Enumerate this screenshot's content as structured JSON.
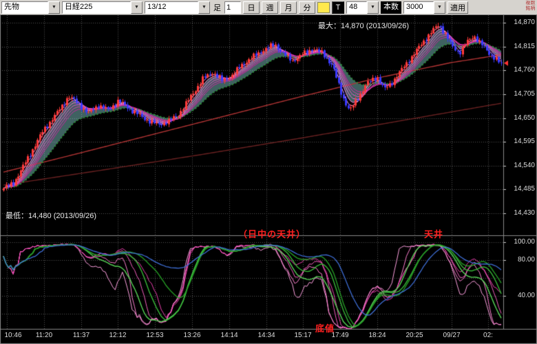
{
  "toolbar": {
    "instrument": "先物",
    "symbol": "日経225",
    "contract": "13/12",
    "bar_label": "足",
    "interval_value": "1",
    "period_buttons": [
      "日",
      "週",
      "月",
      "分"
    ],
    "t_button": "T",
    "bars_count": "48",
    "bars_label": "本数",
    "range_value": "3000",
    "apply_button": "適用",
    "side_tab": "複数銘柄"
  },
  "icons": {
    "chevron_down": "▼"
  },
  "main_chart": {
    "y_axis_labels": [
      "14,870",
      "14,815",
      "14,760",
      "14,705",
      "14,650",
      "14,595",
      "14,540",
      "14,485",
      "14,430"
    ],
    "max_annotation": "最大：14,870 (2013/09/26)",
    "min_annotation": "最低：14,480 (2013/09/26)"
  },
  "indicator_panel": {
    "y_axis_labels": [
      "100.00",
      "80.00",
      "40.00"
    ],
    "y_label_values": [
      100,
      80,
      40
    ],
    "annotations": {
      "intraday_top": "（日中の天井）",
      "top": "天井",
      "bottom": "底値"
    }
  },
  "x_axis_labels": [
    "10:46",
    "11:20",
    "11:37",
    "12:12",
    "12:53",
    "13:26",
    "14:14",
    "14:34",
    "15:17",
    "17:49",
    "18:24",
    "20:25",
    "09/27",
    "02:"
  ],
  "colors": {
    "background": "#000000",
    "grid": "#565656",
    "candle_up": "#ff3a3a",
    "candle_down": "#3a3aff",
    "cyan_fill": "rgba(150,230,230,0.42)",
    "green_ma": "#2d9338",
    "ma_long1": "#b23434",
    "ma_long2": "#6b2222",
    "ribbon": [
      "#ffa8ec",
      "#ff8ae4",
      "#fb6cd8",
      "#f050c8",
      "#e238b6",
      "#d224a4"
    ],
    "stoch_k": [
      "#ffa0e0",
      "#ff7fd0",
      "#f75fc0",
      "#ee40b0"
    ],
    "stoch_d": [
      "#57d657",
      "#38b838",
      "#259a25"
    ],
    "stoch_slow": "#3f6fd8",
    "axis_text": "#dddddd",
    "annotation_red": "#ff2020",
    "price_marker": "#ff3333"
  },
  "chart_data": {
    "type": "candlestick+stochastic",
    "instrument": "先物 日経225 13/12",
    "price_max": 14870,
    "price_min": 14480,
    "max_date": "2013/09/26",
    "min_date": "2013/09/26",
    "y_ticks": [
      14870,
      14815,
      14760,
      14705,
      14650,
      14595,
      14540,
      14485,
      14430
    ],
    "bar_count": 206,
    "close_path": [
      [
        0.0,
        14488
      ],
      [
        0.02,
        14500
      ],
      [
        0.05,
        14560
      ],
      [
        0.08,
        14622
      ],
      [
        0.11,
        14666
      ],
      [
        0.13,
        14700
      ],
      [
        0.15,
        14684
      ],
      [
        0.17,
        14660
      ],
      [
        0.19,
        14680
      ],
      [
        0.21,
        14668
      ],
      [
        0.23,
        14690
      ],
      [
        0.25,
        14674
      ],
      [
        0.28,
        14650
      ],
      [
        0.31,
        14634
      ],
      [
        0.33,
        14642
      ],
      [
        0.35,
        14656
      ],
      [
        0.37,
        14690
      ],
      [
        0.4,
        14740
      ],
      [
        0.42,
        14756
      ],
      [
        0.44,
        14736
      ],
      [
        0.46,
        14750
      ],
      [
        0.48,
        14775
      ],
      [
        0.5,
        14790
      ],
      [
        0.52,
        14806
      ],
      [
        0.545,
        14820
      ],
      [
        0.56,
        14800
      ],
      [
        0.58,
        14782
      ],
      [
        0.6,
        14796
      ],
      [
        0.62,
        14810
      ],
      [
        0.64,
        14800
      ],
      [
        0.66,
        14772
      ],
      [
        0.68,
        14702
      ],
      [
        0.695,
        14666
      ],
      [
        0.71,
        14692
      ],
      [
        0.73,
        14730
      ],
      [
        0.75,
        14746
      ],
      [
        0.765,
        14716
      ],
      [
        0.78,
        14732
      ],
      [
        0.8,
        14762
      ],
      [
        0.82,
        14792
      ],
      [
        0.84,
        14822
      ],
      [
        0.86,
        14850
      ],
      [
        0.875,
        14866
      ],
      [
        0.89,
        14840
      ],
      [
        0.9,
        14816
      ],
      [
        0.915,
        14800
      ],
      [
        0.93,
        14824
      ],
      [
        0.945,
        14840
      ],
      [
        0.96,
        14820
      ],
      [
        0.975,
        14800
      ],
      [
        0.99,
        14786
      ],
      [
        1.0,
        14772
      ]
    ],
    "ma_long1": [
      [
        0,
        14525
      ],
      [
        0.15,
        14568
      ],
      [
        0.3,
        14612
      ],
      [
        0.45,
        14656
      ],
      [
        0.6,
        14700
      ],
      [
        0.75,
        14742
      ],
      [
        0.9,
        14778
      ],
      [
        1,
        14796
      ]
    ],
    "ma_long2": [
      [
        0,
        14495
      ],
      [
        0.2,
        14530
      ],
      [
        0.4,
        14566
      ],
      [
        0.6,
        14604
      ],
      [
        0.8,
        14644
      ],
      [
        1,
        14684
      ]
    ],
    "ribbon_periods": [
      3,
      5,
      7,
      9,
      11,
      13
    ],
    "green_period": 21,
    "stoch": {
      "levels": [
        100,
        80,
        60,
        40,
        20
      ],
      "k_periods": [
        24,
        32,
        40,
        48
      ],
      "d_periods": [
        28,
        40,
        52
      ],
      "slow_period": 64
    }
  }
}
